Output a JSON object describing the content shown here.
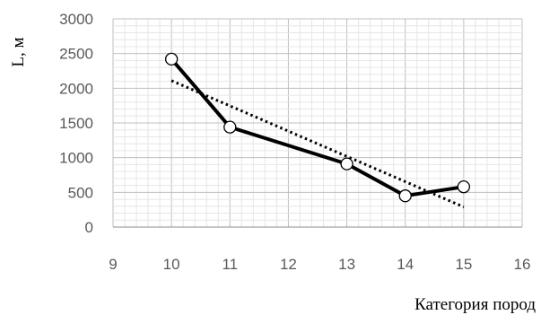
{
  "chart_data": {
    "type": "line",
    "title": "",
    "xlabel": "Категория пород",
    "ylabel": "L, м",
    "xlim": [
      9,
      16
    ],
    "ylim": [
      0,
      3000
    ],
    "x_ticks": [
      "9",
      "10",
      "11",
      "12",
      "13",
      "14",
      "15",
      "16"
    ],
    "y_ticks": [
      "0",
      "500",
      "1000",
      "1500",
      "2000",
      "2500",
      "3000"
    ],
    "grid": {
      "major": true,
      "minor": true
    },
    "legend": "none",
    "series": [
      {
        "style": "solid-line-circle-markers",
        "color": "#000000",
        "x": [
          10,
          11,
          13,
          14,
          15
        ],
        "y": [
          2420,
          1440,
          910,
          450,
          580
        ]
      },
      {
        "style": "dotted-linear-trendline",
        "color": "#000000",
        "x": [
          10,
          15
        ],
        "y": [
          2110,
          290
        ]
      }
    ]
  }
}
